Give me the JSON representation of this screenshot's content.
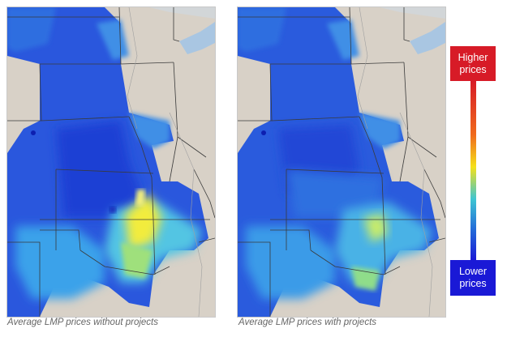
{
  "maps": [
    {
      "id": "without",
      "caption": "Average LMP prices without projects",
      "scenario": "without projects"
    },
    {
      "id": "with",
      "caption": "Average LMP prices with projects",
      "scenario": "with projects"
    }
  ],
  "legend": {
    "high_label": "Higher prices",
    "low_label": "Lower prices",
    "high_color": "#d71b27",
    "low_color": "#1a19d6",
    "gradient": [
      "#d71b27",
      "#f06a1c",
      "#f5e11a",
      "#3ec5d2",
      "#2470d8",
      "#1a19d6"
    ]
  },
  "colors": {
    "land": "#d8d1c7",
    "water": "#a9c6e2",
    "border": "#3a3a3a",
    "price_low": "#2a4bd6",
    "price_mid": "#2f8fe0",
    "price_high": "#f3ec3a"
  }
}
